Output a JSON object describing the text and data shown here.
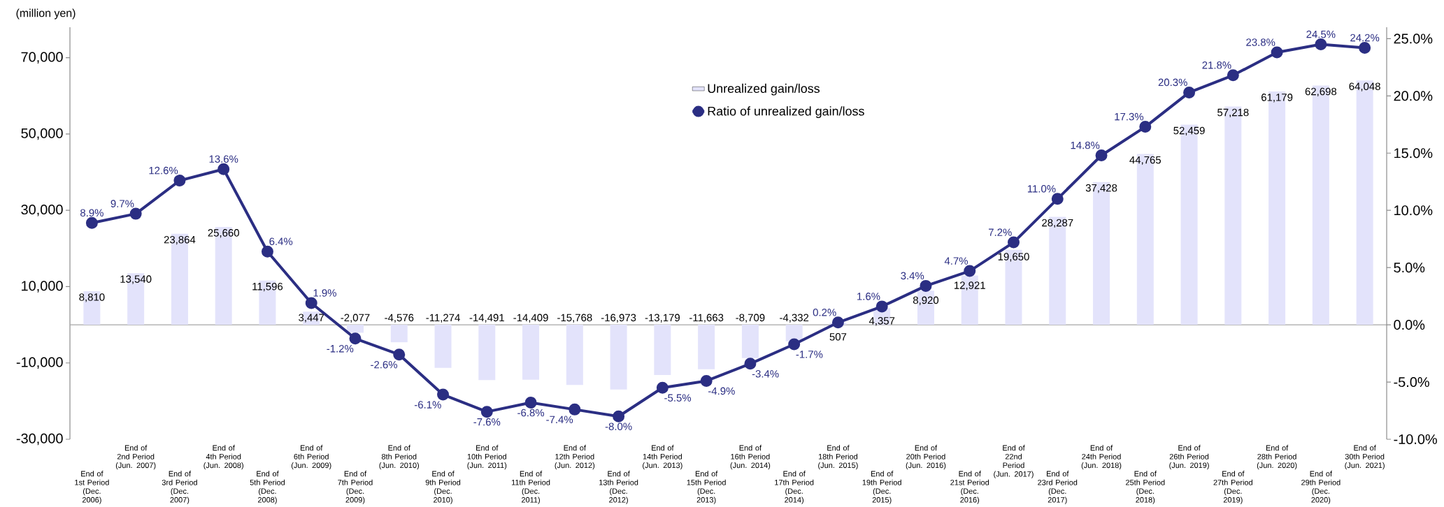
{
  "chart_data": {
    "type": "bar",
    "ylabel": "(million yen)",
    "categories": [
      "End of 1st Period (Dec. 2006)",
      "End of 2nd Period (Jun. 2007)",
      "End of 3rd Period (Dec. 2007)",
      "End of 4th Period (Jun. 2008)",
      "End of 5th Period (Dec. 2008)",
      "End of 6th Period (Jun. 2009)",
      "End of 7th Period (Dec. 2009)",
      "End of 8th Period (Jun. 2010)",
      "End of 9th Period (Dec. 2010)",
      "End of 10th Period (Jun. 2011)",
      "End of 11th Period (Dec. 2011)",
      "End of 12th Period (Jun. 2012)",
      "End of 13th Period (Dec. 2012)",
      "End of 14th Period (Jun. 2013)",
      "End of 15th Period (Dec. 2013)",
      "End of 16th Period (Jun. 2014)",
      "End of 17th Period (Dec. 2014)",
      "End of 18th Period (Jun. 2015)",
      "End of 19th Period (Dec. 2015)",
      "End of 20th Period (Jun. 2016)",
      "End of 21st Period (Dec. 2016)",
      "End of 22nd Period (Jun. 2017)",
      "End of 23rd Period (Dec. 2017)",
      "End of 24th Period (Jun. 2018)",
      "End of 25th Period (Dec. 2018)",
      "End of 26th Period (Jun. 2019)",
      "End of 27th Period (Dec. 2019)",
      "End of 28th Period (Jun. 2020)",
      "End of 29th Period (Dec. 2020)",
      "End of 30th Period (Jun. 2021)"
    ],
    "series": [
      {
        "name": "Unrealized gain/loss",
        "color": "#e3e3fb",
        "values": [
          8810,
          13540,
          23864,
          25660,
          11596,
          3447,
          -2077,
          -4576,
          -11274,
          -14491,
          -14409,
          -15768,
          -16973,
          -13179,
          -11663,
          -8709,
          -4332,
          507,
          4357,
          8920,
          12921,
          19650,
          28287,
          37428,
          44765,
          52459,
          57218,
          61179,
          62698,
          64048
        ],
        "value_labels": [
          "8,810",
          "13,540",
          "23,864",
          "25,660",
          "11,596",
          "3,447",
          "-2,077",
          "-4,576",
          "-11,274",
          "-14,491",
          "-14,409",
          "-15,768",
          "-16,973",
          "-13,179",
          "-11,663",
          "-8,709",
          "-4,332",
          "507",
          "4,357",
          "8,920",
          "12,921",
          "19,650",
          "28,287",
          "37,428",
          "44,765",
          "52,459",
          "57,218",
          "61,179",
          "62,698",
          "64,048"
        ]
      },
      {
        "name": "Ratio of unrealized gain/loss",
        "type": "line",
        "axis": "y2",
        "color": "#2b2e83",
        "marker": "circle",
        "line_style": "solid",
        "values": [
          8.9,
          9.7,
          12.6,
          13.6,
          6.4,
          1.9,
          -1.2,
          -2.6,
          -6.1,
          -7.6,
          -6.8,
          -7.4,
          -8.0,
          -5.5,
          -4.9,
          -3.4,
          -1.7,
          0.2,
          1.6,
          3.4,
          4.7,
          7.2,
          11.0,
          14.8,
          17.3,
          20.3,
          21.8,
          23.8,
          24.5,
          24.2
        ],
        "value_labels": [
          "8.9%",
          "9.7%",
          "12.6%",
          "13.6%",
          "6.4%",
          "1.9%",
          "-1.2%",
          "-2.6%",
          "-6.1%",
          "-7.6%",
          "-6.8%",
          "-7.4%",
          "-8.0%",
          "-5.5%",
          "-4.9%",
          "-3.4%",
          "-1.7%",
          "0.2%",
          "1.6%",
          "3.4%",
          "4.7%",
          "7.2%",
          "11.0%",
          "14.8%",
          "17.3%",
          "20.3%",
          "21.8%",
          "23.8%",
          "24.5%",
          "24.2%"
        ]
      }
    ],
    "ylim": [
      -30000,
      78000
    ],
    "yticks": [
      {
        "value": -30000,
        "label": "-30,000"
      },
      {
        "value": -10000,
        "label": "-10,000"
      },
      {
        "value": 10000,
        "label": "10,000"
      },
      {
        "value": 30000,
        "label": "30,000"
      },
      {
        "value": 50000,
        "label": "50,000"
      },
      {
        "value": 70000,
        "label": "70,000"
      }
    ],
    "y2lim": [
      -10,
      26
    ],
    "y2ticks": [
      {
        "value": -10,
        "label": "-10.0%"
      },
      {
        "value": -5,
        "label": "-5.0%"
      },
      {
        "value": 0,
        "label": "0.0%"
      },
      {
        "value": 5,
        "label": "5.0%"
      },
      {
        "value": 10,
        "label": "10.0%"
      },
      {
        "value": 15,
        "label": "15.0%"
      },
      {
        "value": 20,
        "label": "20.0%"
      },
      {
        "value": 25,
        "label": "25.0%"
      }
    ],
    "ref_lines": [
      {
        "axis": "y",
        "value": 0,
        "color": "#a6a6a6"
      }
    ],
    "legend": "top"
  }
}
